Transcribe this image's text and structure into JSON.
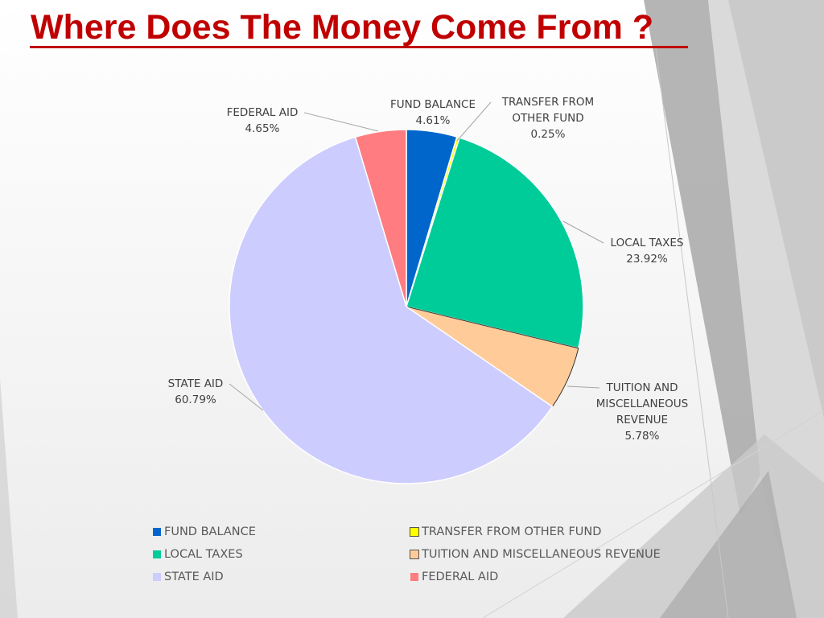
{
  "title": "Where Does The Money Come From ?",
  "colors": {
    "title": "#c00000"
  },
  "chart_data": {
    "type": "pie",
    "slices": [
      {
        "label": "FUND BALANCE",
        "label_lines": [
          "FUND BALANCE"
        ],
        "value": 4.61,
        "display": "4.61%",
        "color": "#0066cc"
      },
      {
        "label": "TRANSFER FROM OTHER FUND",
        "label_lines": [
          "TRANSFER FROM",
          "OTHER FUND"
        ],
        "value": 0.25,
        "display": "0.25%",
        "color": "#ffff00"
      },
      {
        "label": "LOCAL TAXES",
        "label_lines": [
          "LOCAL TAXES"
        ],
        "value": 23.92,
        "display": "23.92%",
        "color": "#00cc99"
      },
      {
        "label": "TUITION AND MISCELLANEOUS REVENUE",
        "label_lines": [
          "TUITION AND",
          "MISCELLANEOUS",
          "REVENUE"
        ],
        "value": 5.78,
        "display": "5.78%",
        "color": "#ffcc99"
      },
      {
        "label": "STATE AID",
        "label_lines": [
          "STATE AID"
        ],
        "value": 60.79,
        "display": "60.79%",
        "color": "#ccccff"
      },
      {
        "label": "FEDERAL AID",
        "label_lines": [
          "FEDERAL AID"
        ],
        "value": 4.65,
        "display": "4.65%",
        "color": "#ff7c80"
      }
    ],
    "legend_position": "bottom"
  }
}
